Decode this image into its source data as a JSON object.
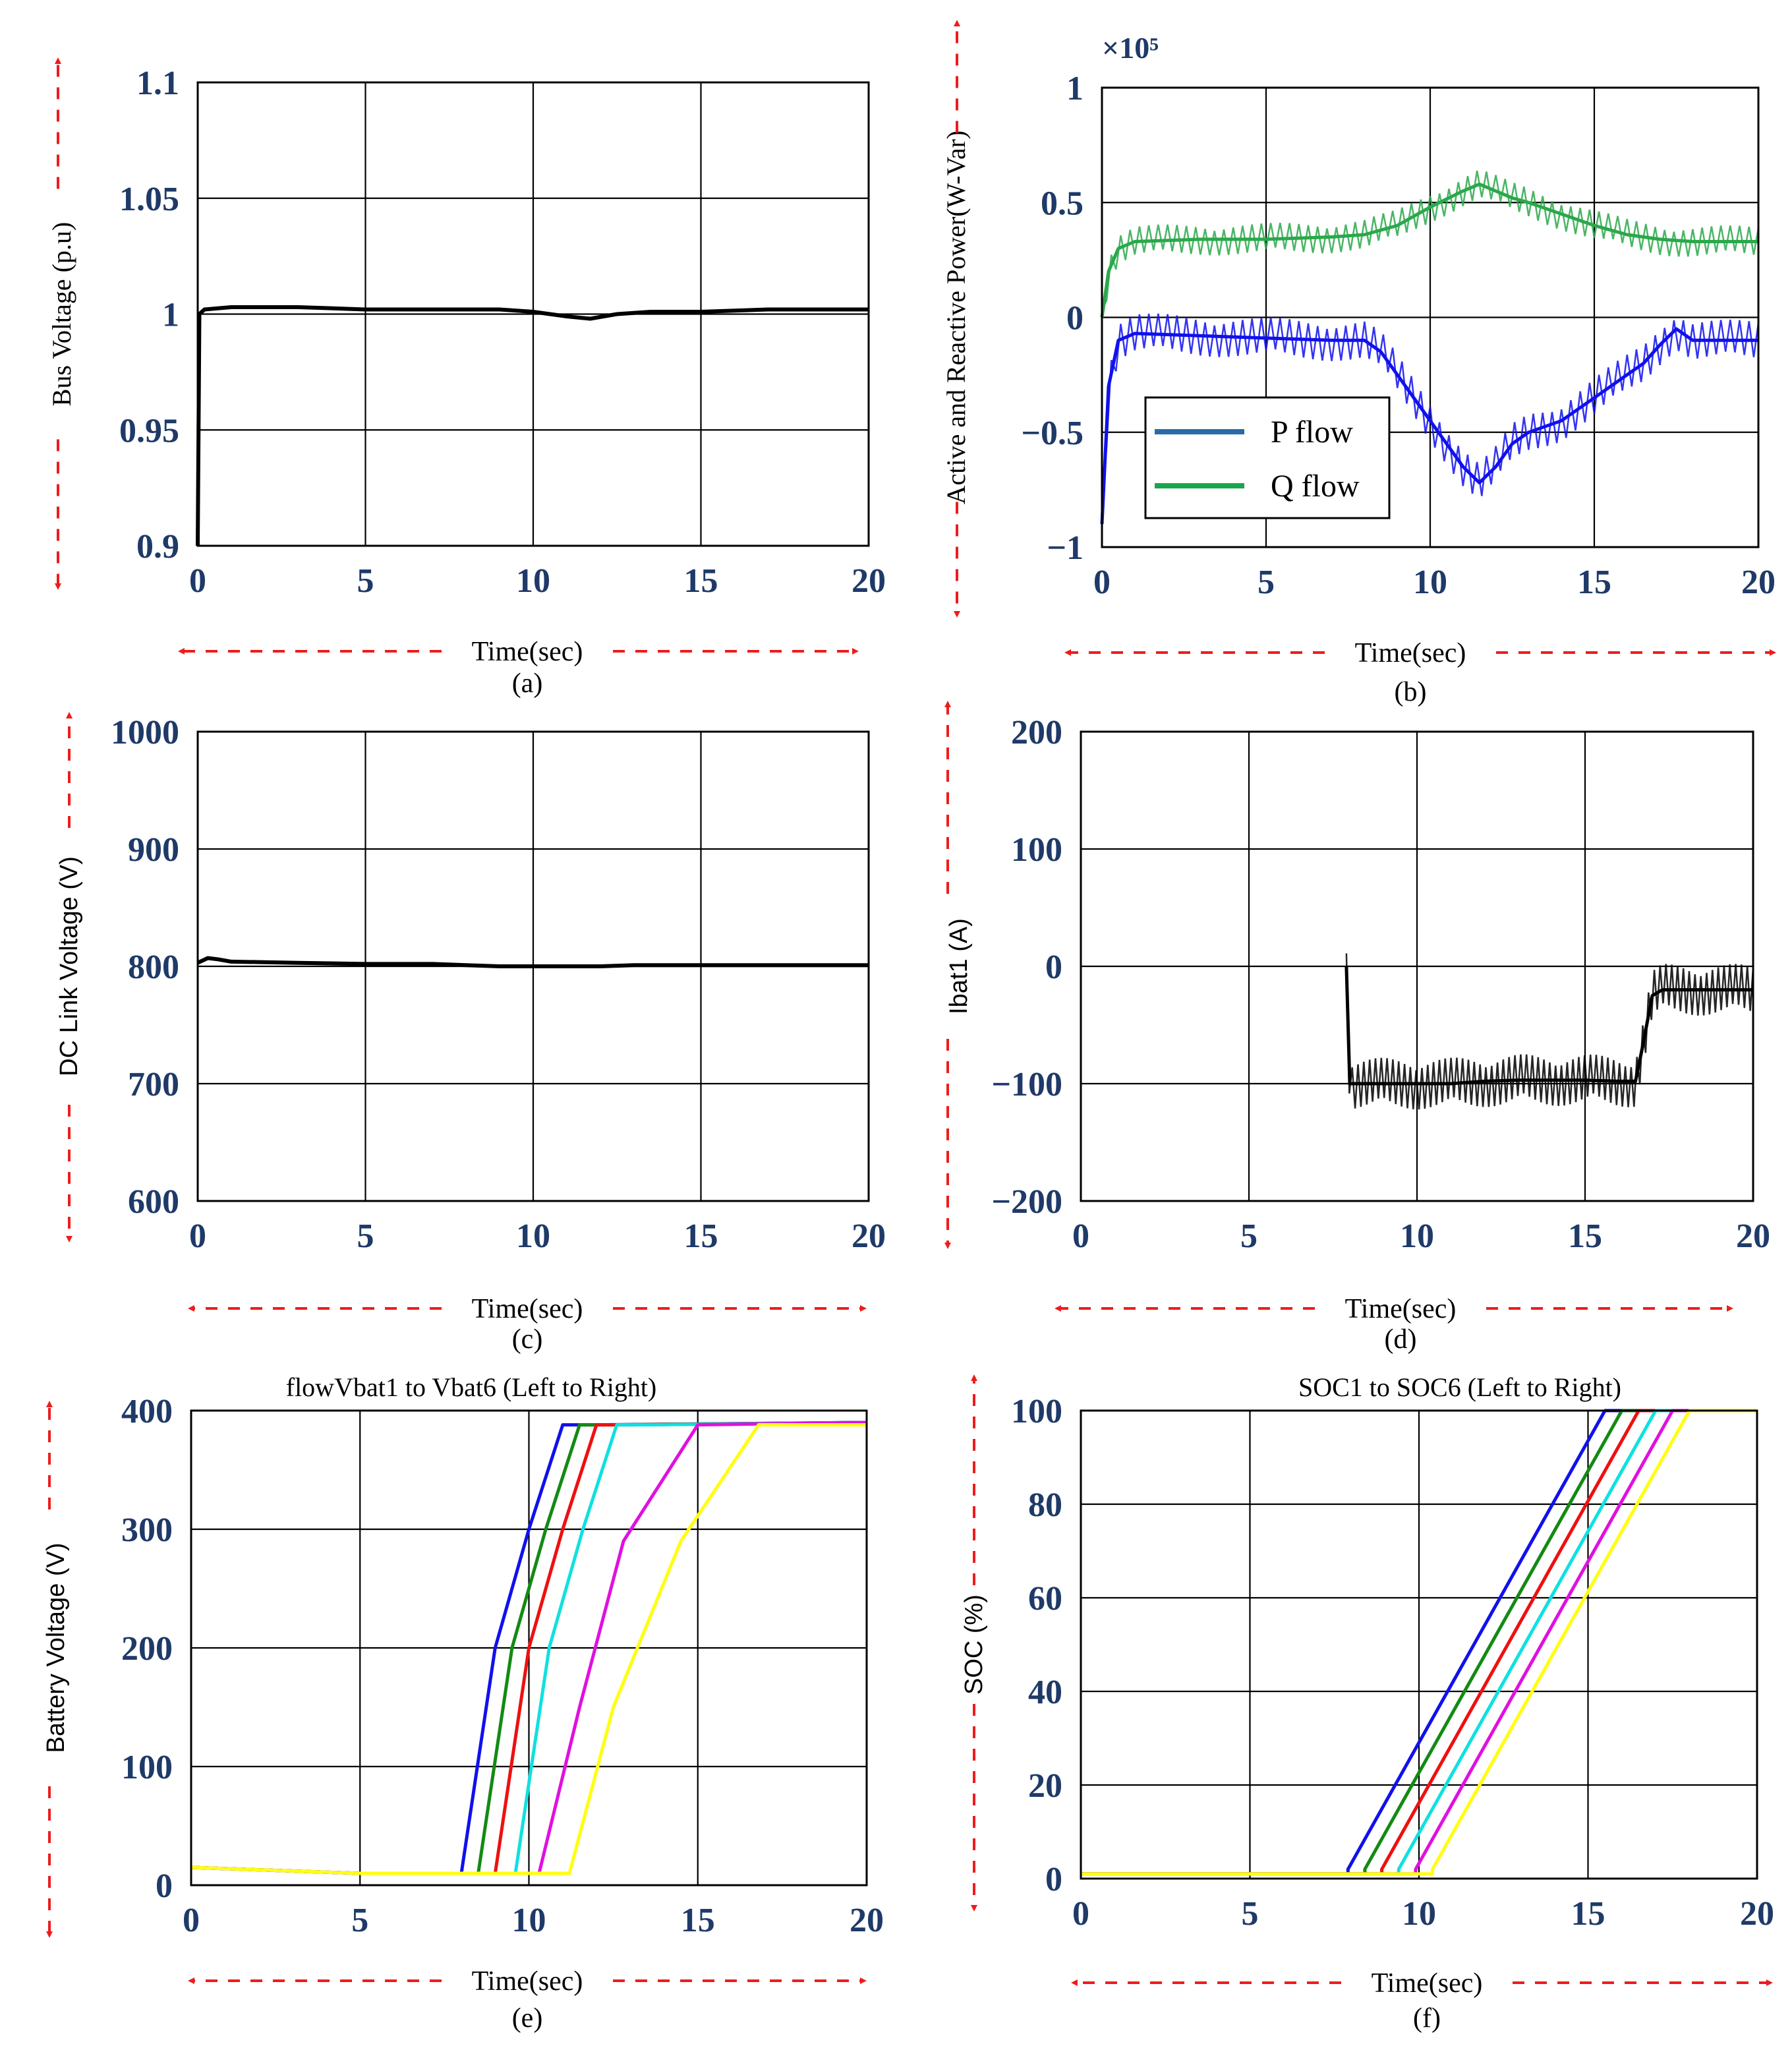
{
  "figure": {
    "xlabel_common": "Time(sec)"
  },
  "chart_data": [
    {
      "id": "a",
      "type": "line",
      "panel_label": "(a)",
      "title": "",
      "xlabel": "Time(sec)",
      "ylabel": "Bus Voltage (p.u)",
      "xlim": [
        0,
        20
      ],
      "ylim": [
        0.9,
        1.1
      ],
      "xticks": [
        "0",
        "5",
        "10",
        "15",
        "20"
      ],
      "yticks": [
        "0.9",
        "0.95",
        "1",
        "1.05",
        "1.1"
      ],
      "series": [
        {
          "name": "Bus Voltage",
          "color": "#000000",
          "x": [
            0,
            0.05,
            0.2,
            1,
            3,
            5,
            7,
            9,
            10,
            11,
            11.7,
            12.5,
            13.5,
            15,
            17,
            20
          ],
          "y": [
            0.9,
            1.0,
            1.002,
            1.003,
            1.003,
            1.002,
            1.002,
            1.002,
            1.001,
            0.999,
            0.998,
            1.0,
            1.001,
            1.001,
            1.002,
            1.002
          ]
        }
      ]
    },
    {
      "id": "b",
      "type": "line",
      "panel_label": "(b)",
      "title": "",
      "xlabel": "Time(sec)",
      "ylabel": "Active and Reactive Power(W-Var)",
      "multiplier": "×10⁵",
      "xlim": [
        0,
        20
      ],
      "ylim": [
        -1,
        1
      ],
      "xticks": [
        "0",
        "5",
        "10",
        "15",
        "20"
      ],
      "yticks": [
        "−1",
        "−0.5",
        "0",
        "0.5",
        "1"
      ],
      "legend": [
        "P flow",
        "Q flow"
      ],
      "series": [
        {
          "name": "P flow",
          "color": "#1010ee",
          "x": [
            0,
            0.2,
            0.5,
            1,
            3,
            5,
            7,
            8,
            8.5,
            9,
            9.5,
            10,
            10.5,
            11,
            11.5,
            12,
            12.5,
            13,
            14,
            15,
            16,
            16.5,
            17,
            17.5,
            18,
            19,
            20
          ],
          "y": [
            -0.9,
            -0.3,
            -0.1,
            -0.07,
            -0.08,
            -0.09,
            -0.1,
            -0.1,
            -0.15,
            -0.25,
            -0.35,
            -0.45,
            -0.55,
            -0.65,
            -0.72,
            -0.65,
            -0.55,
            -0.5,
            -0.45,
            -0.35,
            -0.25,
            -0.2,
            -0.12,
            -0.05,
            -0.1,
            -0.1,
            -0.1
          ]
        },
        {
          "name": "Q flow",
          "color": "#2aa84a",
          "x": [
            0,
            0.2,
            0.5,
            1,
            3,
            5,
            7,
            8,
            9,
            10,
            11,
            11.5,
            12,
            12.5,
            13,
            14,
            15,
            16,
            17,
            18,
            19,
            20
          ],
          "y": [
            0.0,
            0.2,
            0.3,
            0.33,
            0.34,
            0.34,
            0.35,
            0.36,
            0.4,
            0.48,
            0.55,
            0.58,
            0.55,
            0.52,
            0.5,
            0.45,
            0.4,
            0.36,
            0.34,
            0.33,
            0.33,
            0.33
          ]
        }
      ]
    },
    {
      "id": "c",
      "type": "line",
      "panel_label": "(c)",
      "title": "",
      "xlabel": "Time(sec)",
      "ylabel": "DC Link Voltage (V)",
      "xlim": [
        0,
        20
      ],
      "ylim": [
        600,
        1000
      ],
      "xticks": [
        "0",
        "5",
        "10",
        "15",
        "20"
      ],
      "yticks": [
        "600",
        "700",
        "800",
        "900",
        "1000"
      ],
      "series": [
        {
          "name": "DC Link Voltage",
          "color": "#000000",
          "x": [
            0,
            0.3,
            0.6,
            1,
            3,
            5,
            7,
            8,
            9,
            10,
            12,
            13,
            15,
            17,
            20
          ],
          "y": [
            803,
            807,
            806,
            804,
            803,
            802,
            802,
            801,
            800,
            800,
            800,
            801,
            801,
            801,
            801
          ]
        }
      ]
    },
    {
      "id": "d",
      "type": "line",
      "panel_label": "(d)",
      "title": "",
      "xlabel": "Time(sec)",
      "ylabel": "Ibat1 (A)",
      "xlim": [
        0,
        20
      ],
      "ylim": [
        -200,
        200
      ],
      "xticks": [
        "0",
        "5",
        "10",
        "15",
        "20"
      ],
      "yticks": [
        "−200",
        "−100",
        "0",
        "100",
        "200"
      ],
      "series": [
        {
          "name": "Ibat1",
          "color": "#000000",
          "x": [
            7.9,
            8.0,
            8.2,
            9,
            10,
            11,
            12,
            13,
            14,
            15,
            16,
            16.5,
            16.7,
            17,
            17.3,
            18,
            19,
            20
          ],
          "y": [
            0,
            -100,
            -100,
            -100,
            -100,
            -100,
            -98,
            -97,
            -97,
            -97,
            -98,
            -98,
            -70,
            -25,
            -20,
            -20,
            -20,
            -20
          ]
        }
      ]
    },
    {
      "id": "e",
      "type": "line",
      "panel_label": "(e)",
      "title": "flowVbat1 to Vbat6 (Left to Right)",
      "xlabel": "Time(sec)",
      "ylabel": "Battery Voltage (V)",
      "xlim": [
        0,
        20
      ],
      "ylim": [
        0,
        400
      ],
      "xticks": [
        "0",
        "5",
        "10",
        "15",
        "20"
      ],
      "yticks": [
        "0",
        "100",
        "200",
        "300",
        "400"
      ],
      "series": [
        {
          "name": "Vbat1",
          "color": "#1010ee",
          "x": [
            0,
            5,
            8.0,
            9.0,
            10.0,
            11.0,
            12.0,
            20
          ],
          "y": [
            15,
            10,
            10,
            200,
            300,
            388,
            388,
            390
          ]
        },
        {
          "name": "Vbat2",
          "color": "#138a13",
          "x": [
            0,
            5,
            8.5,
            9.5,
            10.5,
            11.5,
            12.5,
            20
          ],
          "y": [
            15,
            10,
            10,
            200,
            300,
            388,
            388,
            390
          ]
        },
        {
          "name": "Vbat3",
          "color": "#ee1010",
          "x": [
            0,
            5,
            9.0,
            10.0,
            11.0,
            12.0,
            13.0,
            20
          ],
          "y": [
            15,
            10,
            10,
            200,
            300,
            388,
            388,
            390
          ]
        },
        {
          "name": "Vbat4",
          "color": "#10e0e0",
          "x": [
            0,
            5,
            9.6,
            10.6,
            11.6,
            12.6,
            13.6,
            20
          ],
          "y": [
            15,
            10,
            10,
            200,
            300,
            388,
            388,
            390
          ]
        },
        {
          "name": "Vbat5",
          "color": "#e010e0",
          "x": [
            0,
            5,
            10.3,
            11.5,
            12.8,
            15.0,
            20
          ],
          "y": [
            15,
            10,
            10,
            150,
            290,
            388,
            390
          ]
        },
        {
          "name": "Vbat6",
          "color": "#ffff10",
          "x": [
            0,
            5,
            11.2,
            12.5,
            14.5,
            16.8,
            20
          ],
          "y": [
            15,
            10,
            10,
            150,
            290,
            388,
            388
          ]
        }
      ]
    },
    {
      "id": "f",
      "type": "line",
      "panel_label": "(f)",
      "title": "SOC1 to SOC6 (Left to Right)",
      "xlabel": "Time(sec)",
      "ylabel": "SOC (%)",
      "xlim": [
        0,
        20
      ],
      "ylim": [
        0,
        100
      ],
      "xticks": [
        "0",
        "5",
        "10",
        "15",
        "20"
      ],
      "yticks": [
        "0",
        "20",
        "40",
        "60",
        "80",
        "100"
      ],
      "series": [
        {
          "name": "SOC1",
          "color": "#1010ee",
          "x": [
            0,
            7.9,
            7.9,
            15.5,
            20
          ],
          "y": [
            1,
            1,
            2,
            100,
            100
          ]
        },
        {
          "name": "SOC2",
          "color": "#138a13",
          "x": [
            0,
            8.4,
            8.4,
            16.0,
            20
          ],
          "y": [
            1,
            1,
            2,
            100,
            100
          ]
        },
        {
          "name": "SOC3",
          "color": "#ee1010",
          "x": [
            0,
            8.9,
            8.9,
            16.5,
            20
          ],
          "y": [
            1,
            1,
            2,
            100,
            100
          ]
        },
        {
          "name": "SOC4",
          "color": "#10e0e0",
          "x": [
            0,
            9.4,
            9.4,
            17.0,
            20
          ],
          "y": [
            1,
            1,
            2,
            100,
            100
          ]
        },
        {
          "name": "SOC5",
          "color": "#e010e0",
          "x": [
            0,
            9.9,
            9.9,
            17.5,
            20
          ],
          "y": [
            1,
            1,
            2,
            100,
            100
          ]
        },
        {
          "name": "SOC6",
          "color": "#ffff10",
          "x": [
            0,
            10.4,
            10.4,
            18.0,
            20
          ],
          "y": [
            1,
            1,
            2,
            100,
            100
          ]
        }
      ]
    }
  ]
}
